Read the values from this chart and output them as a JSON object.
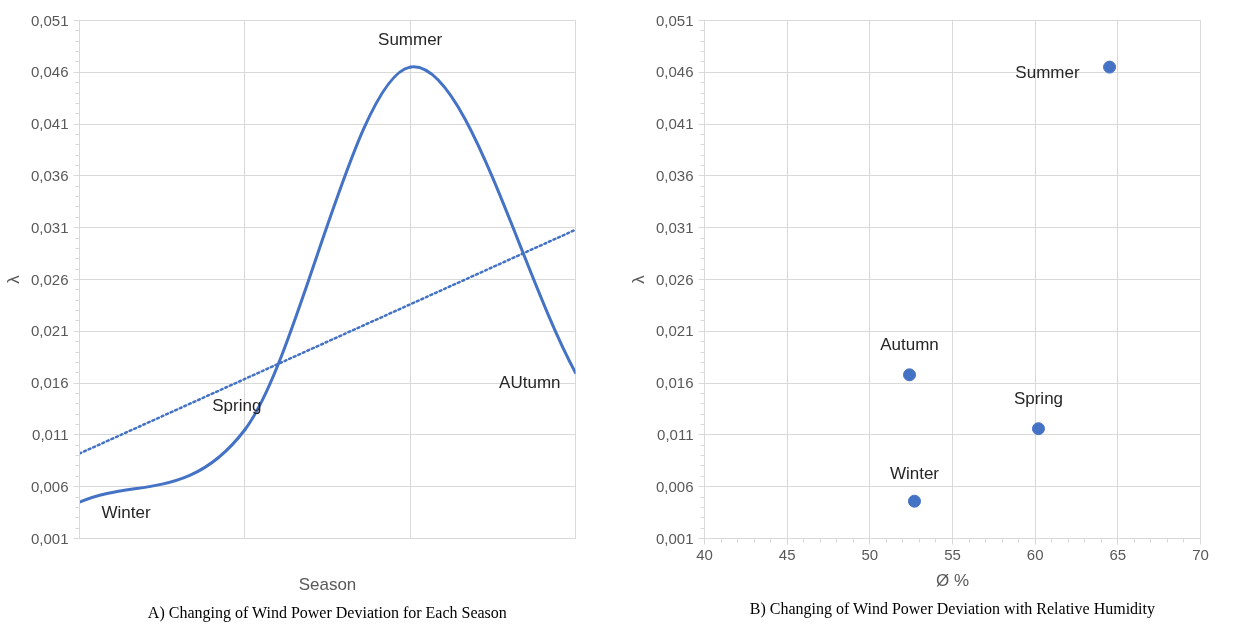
{
  "chart_data": [
    {
      "type": "line",
      "categories": [
        null,
        null,
        null,
        null
      ],
      "xlabel": "Season",
      "ylabel": "λ",
      "series": [
        {
          "color": "#4472c4",
          "values": [
            0.0045,
            0.0115,
            0.0465,
            0.017
          ],
          "value_labels": [
            "Winter",
            "Spring",
            "Summer",
            "AUtumn"
          ],
          "line_style": "solid"
        },
        {
          "color": "#4472c4",
          "values": [
            0.0092,
            0.0164,
            0.0236,
            0.0308
          ],
          "line_style": "dotted"
        }
      ],
      "ylim": [
        0.001,
        0.051
      ],
      "yticks": [
        {
          "value": 0.001,
          "label": "0,001"
        },
        {
          "value": 0.006,
          "label": "0,006"
        },
        {
          "value": 0.011,
          "label": "0,011"
        },
        {
          "value": 0.016,
          "label": "0,016"
        },
        {
          "value": 0.021,
          "label": "0,021"
        },
        {
          "value": 0.026,
          "label": "0,026"
        },
        {
          "value": 0.031,
          "label": "0,031"
        },
        {
          "value": 0.036,
          "label": "0,036"
        },
        {
          "value": 0.041,
          "label": "0,041"
        },
        {
          "value": 0.046,
          "label": "0,046"
        },
        {
          "value": 0.051,
          "label": "0,051"
        }
      ],
      "tick_labels": "y",
      "grid": true,
      "marker": "none",
      "annotations": [
        "A) Changing of Wind Power Deviation for Each Season"
      ]
    },
    {
      "type": "scatter",
      "xlabel": "Ø %",
      "ylabel": "λ",
      "series": [
        {
          "color": "#4472c4",
          "x": [
            64.5,
            52.4,
            60.2,
            52.7
          ],
          "values": [
            0.0465,
            0.0168,
            0.0116,
            0.0046
          ],
          "value_labels": [
            "Summer",
            "Autumn",
            "Spring",
            "Winter"
          ]
        }
      ],
      "xlim": [
        40,
        70
      ],
      "xticks": [
        40,
        45,
        50,
        55,
        60,
        65,
        70
      ],
      "ylim": [
        0.001,
        0.051
      ],
      "yticks": [
        {
          "value": 0.001,
          "label": "0,001"
        },
        {
          "value": 0.006,
          "label": "0,006"
        },
        {
          "value": 0.011,
          "label": "0,011"
        },
        {
          "value": 0.016,
          "label": "0,016"
        },
        {
          "value": 0.021,
          "label": "0,021"
        },
        {
          "value": 0.026,
          "label": "0,026"
        },
        {
          "value": 0.031,
          "label": "0,031"
        },
        {
          "value": 0.036,
          "label": "0,036"
        },
        {
          "value": 0.041,
          "label": "0,041"
        },
        {
          "value": 0.046,
          "label": "0,046"
        },
        {
          "value": 0.051,
          "label": "0,051"
        }
      ],
      "grid": true,
      "marker": "circle",
      "annotations": [
        "B) Changing of Wind Power Deviation with Relative Humidity"
      ]
    }
  ]
}
